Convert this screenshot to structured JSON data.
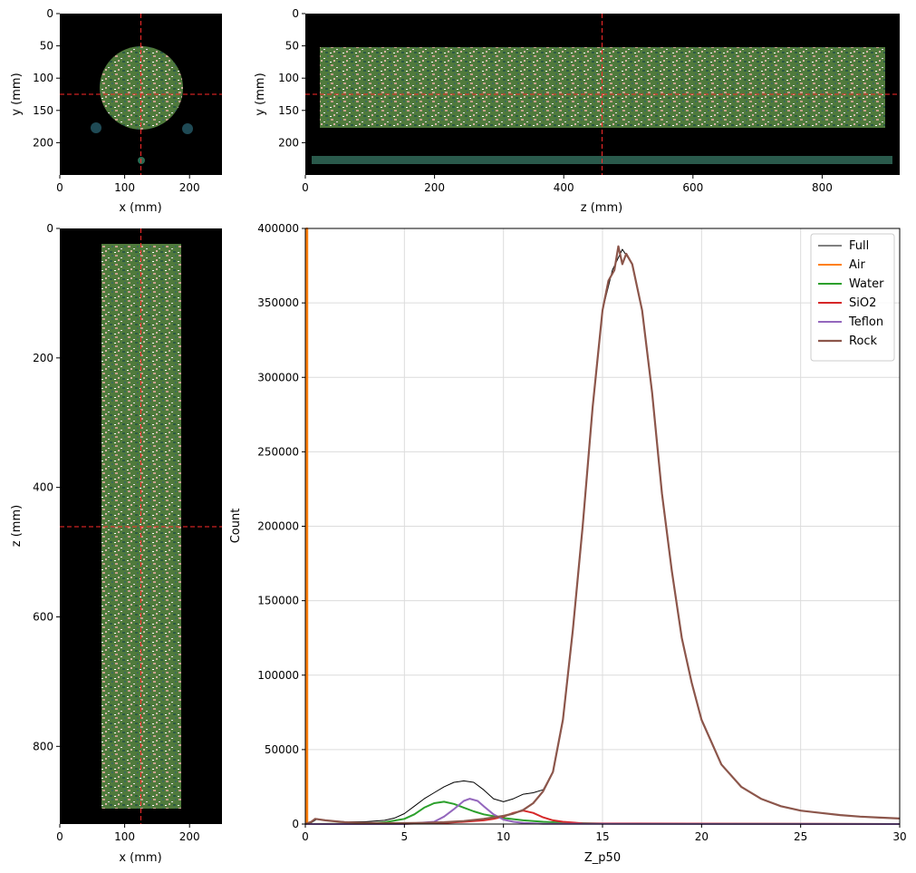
{
  "chart_data": [
    {
      "type": "image",
      "panel": "axial-slice",
      "xlabel": "x (mm)",
      "ylabel": "y (mm)",
      "xticks": [
        0,
        100,
        200
      ],
      "yticks": [
        0,
        50,
        100,
        150,
        200
      ],
      "xlim": [
        0,
        250
      ],
      "ylim": [
        250,
        0
      ],
      "crosshair": {
        "x": 125,
        "y": 125
      },
      "crosshair_color": "#ff2a2a"
    },
    {
      "type": "image",
      "panel": "coronal-slice",
      "xlabel": "z (mm)",
      "ylabel": "y (mm)",
      "xticks": [
        0,
        200,
        400,
        600,
        800
      ],
      "yticks": [
        0,
        50,
        100,
        150,
        200
      ],
      "xlim": [
        0,
        920
      ],
      "ylim": [
        250,
        0
      ],
      "crosshair": {
        "x": 460,
        "y": 125
      },
      "crosshair_color": "#ff2a2a"
    },
    {
      "type": "image",
      "panel": "sagittal-slice",
      "xlabel": "x (mm)",
      "ylabel": "z (mm)",
      "xticks": [
        0,
        100,
        200
      ],
      "yticks": [
        0,
        200,
        400,
        600,
        800
      ],
      "xlim": [
        0,
        250
      ],
      "ylim": [
        920,
        0
      ],
      "crosshair": {
        "x": 125,
        "y": 460
      },
      "crosshair_color": "#ff2a2a"
    },
    {
      "type": "line",
      "panel": "histogram",
      "xlabel": "Z_p50",
      "ylabel": "Count",
      "xlim": [
        0,
        30
      ],
      "ylim": [
        0,
        400000
      ],
      "xticks": [
        0,
        5,
        10,
        15,
        20,
        25,
        30
      ],
      "yticks": [
        0,
        50000,
        100000,
        150000,
        200000,
        250000,
        300000,
        350000,
        400000
      ],
      "grid": true,
      "legend": "top-right",
      "series": [
        {
          "name": "Full",
          "color": "#000000",
          "width": 1,
          "x": [
            0,
            0.3,
            0.6,
            1,
            2,
            3,
            4,
            4.5,
            5,
            5.5,
            6,
            6.5,
            7,
            7.5,
            8,
            8.5,
            9,
            9.5,
            10,
            10.5,
            11,
            11.5,
            12,
            12.5,
            13,
            13.5,
            14,
            14.5,
            15,
            15.5,
            16,
            16.5,
            17,
            17.5,
            18,
            18.5,
            19,
            19.5,
            20,
            21,
            22,
            23,
            24,
            25,
            26,
            27,
            28,
            29,
            30
          ],
          "y": [
            0,
            1000,
            3500,
            2500,
            1500,
            1500,
            2500,
            4000,
            7000,
            12000,
            17000,
            21000,
            25000,
            28000,
            29000,
            28000,
            23000,
            17000,
            15000,
            17000,
            20000,
            21000,
            23000,
            35000,
            70000,
            130000,
            200000,
            280000,
            345000,
            372000,
            386000,
            376000,
            345000,
            290000,
            222000,
            170000,
            125000,
            95000,
            70000,
            40000,
            25000,
            17000,
            12000,
            9000,
            7500,
            6000,
            5000,
            4300,
            3700
          ]
        },
        {
          "name": "Air",
          "color": "#ff7f0e",
          "width": 2,
          "x": [
            0.05,
            0.05,
            0.1,
            0.1
          ],
          "y": [
            0,
            400000,
            400000,
            0
          ]
        },
        {
          "name": "Water",
          "color": "#2ca02c",
          "width": 2,
          "x": [
            0,
            3,
            4,
            5,
            5.5,
            6,
            6.5,
            7,
            7.5,
            8,
            8.5,
            9,
            10,
            11,
            12,
            13,
            15,
            30
          ],
          "y": [
            0,
            200,
            1200,
            3500,
            6500,
            11000,
            14000,
            15000,
            13500,
            11000,
            8500,
            6500,
            4000,
            2500,
            1500,
            900,
            300,
            0
          ]
        },
        {
          "name": "SiO2",
          "color": "#d62728",
          "width": 2,
          "x": [
            0,
            5,
            7,
            8,
            9,
            9.5,
            10,
            10.5,
            11,
            11.5,
            12,
            12.5,
            13,
            14,
            30
          ],
          "y": [
            0,
            200,
            800,
            1500,
            2500,
            3500,
            5000,
            7500,
            9000,
            7500,
            4500,
            2500,
            1500,
            500,
            0
          ]
        },
        {
          "name": "Teflon",
          "color": "#9467bd",
          "width": 2,
          "x": [
            0,
            5,
            6.5,
            7,
            7.5,
            8,
            8.3,
            8.7,
            9,
            9.5,
            10,
            10.5,
            11,
            12,
            30
          ],
          "y": [
            0,
            0,
            1500,
            5000,
            10000,
            15500,
            17000,
            15500,
            12000,
            6500,
            3000,
            1500,
            800,
            200,
            0
          ]
        },
        {
          "name": "Rock",
          "color": "#8c564b",
          "width": 2.2,
          "x": [
            0,
            0.3,
            0.5,
            1,
            2,
            3,
            4,
            5,
            6,
            7,
            8,
            9,
            10,
            10.5,
            11,
            11.5,
            12,
            12.5,
            13,
            13.5,
            14,
            14.5,
            15,
            15.3,
            15.6,
            15.8,
            16,
            16.2,
            16.5,
            17,
            17.5,
            18,
            18.5,
            19,
            19.5,
            20,
            21,
            22,
            23,
            24,
            25,
            26,
            27,
            28,
            29,
            30
          ],
          "y": [
            0,
            1500,
            3500,
            2500,
            1200,
            800,
            600,
            600,
            800,
            1200,
            2000,
            3500,
            5500,
            7000,
            9500,
            14000,
            22000,
            35000,
            70000,
            130000,
            200000,
            280000,
            345000,
            365000,
            372000,
            388000,
            376000,
            383000,
            376000,
            345000,
            290000,
            222000,
            170000,
            125000,
            95000,
            70000,
            40000,
            25000,
            17000,
            12000,
            9000,
            7500,
            6000,
            5000,
            4300,
            3700
          ]
        }
      ]
    }
  ]
}
